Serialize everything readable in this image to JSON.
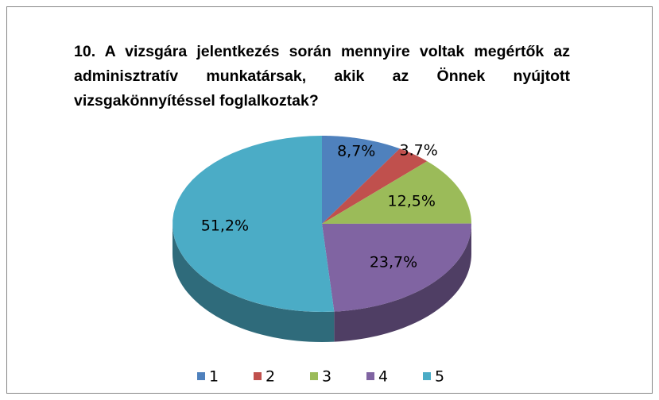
{
  "chart_data": {
    "type": "pie3d",
    "title": "10. A vizsgára jelentkezés során mennyire voltak megértők az adminisztratív munkatársak, akik az Önnek nyújtott vizsgakönnyítéssel foglalkoztak?",
    "categories": [
      "1",
      "2",
      "3",
      "4",
      "5"
    ],
    "values": [
      8.7,
      3.7,
      12.5,
      23.7,
      51.2
    ],
    "value_labels": [
      "8,7%",
      "3.7%",
      "12,5%",
      "23,7%",
      "51,2%"
    ],
    "colors": [
      "#4f81bd",
      "#c0504d",
      "#9bbb59",
      "#8064a2",
      "#4bacc6"
    ],
    "legend": "bottom"
  }
}
